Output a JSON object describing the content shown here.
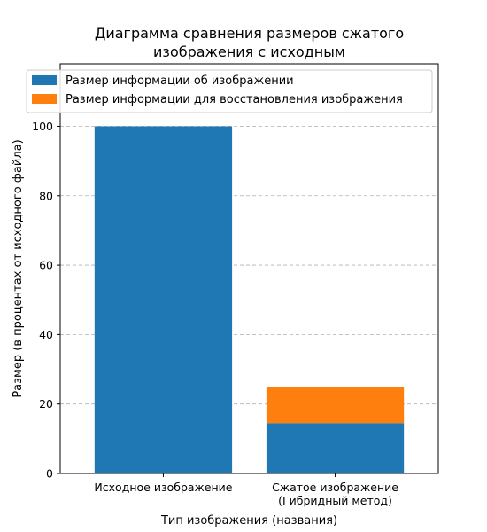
{
  "chart_data": {
    "type": "bar",
    "stacked": true,
    "title_lines": [
      "Диаграмма сравнения размеров сжатого",
      "изображения с исходным"
    ],
    "xlabel": "Тип изображения (названия)",
    "ylabel": "Размер (в процентах от исходного файла)",
    "categories": [
      [
        "Исходное изображение"
      ],
      [
        "Сжатое изображение",
        "(Гибридный метод)"
      ]
    ],
    "series": [
      {
        "name": "Размер информации об изображении",
        "color": "#1f77b4",
        "values": [
          100,
          14.5
        ]
      },
      {
        "name": "Размер информации для восстановления изображения",
        "color": "#ff7f0e",
        "values": [
          0,
          10.3
        ]
      }
    ],
    "ylim": [
      0,
      118
    ],
    "yticks": [
      0,
      20,
      40,
      60,
      80,
      100
    ],
    "grid": "y-dashed",
    "legend_position": "top-left"
  }
}
